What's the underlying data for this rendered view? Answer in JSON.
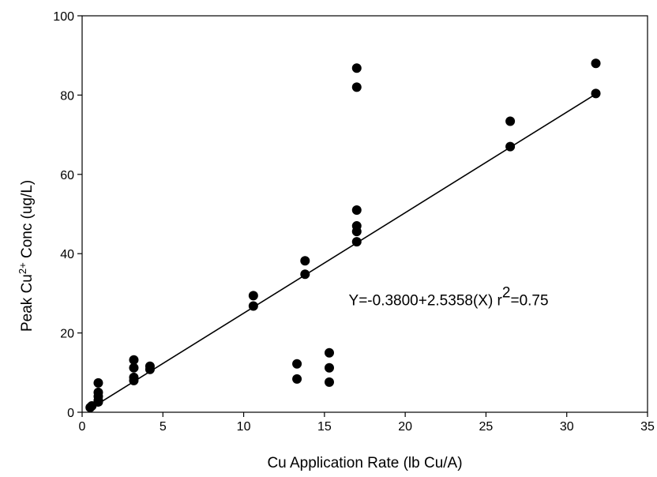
{
  "chart_data": {
    "type": "scatter",
    "title": "",
    "xlabel": "Cu Application Rate (lb Cu/A)",
    "ylabel_main": "Peak Cu",
    "ylabel_sup": "2+",
    "ylabel_rest": " Conc (ug/L)",
    "xlim": [
      0,
      35
    ],
    "ylim": [
      0,
      100
    ],
    "x_ticks": [
      0,
      5,
      10,
      15,
      20,
      25,
      30,
      35
    ],
    "y_ticks": [
      0,
      20,
      40,
      60,
      80,
      100
    ],
    "grid": false,
    "series": [
      {
        "points": [
          [
            0.5,
            1.2
          ],
          [
            0.6,
            1.6
          ],
          [
            1.0,
            2.6
          ],
          [
            1.0,
            3.0
          ],
          [
            1.0,
            4.0
          ],
          [
            1.0,
            5.0
          ],
          [
            1.0,
            7.4
          ],
          [
            3.2,
            8.0
          ],
          [
            3.2,
            8.8
          ],
          [
            3.2,
            11.2
          ],
          [
            3.2,
            13.2
          ],
          [
            4.2,
            10.8
          ],
          [
            4.2,
            11.6
          ],
          [
            10.6,
            26.8
          ],
          [
            10.6,
            29.4
          ],
          [
            13.3,
            8.4
          ],
          [
            13.3,
            12.2
          ],
          [
            13.8,
            34.8
          ],
          [
            13.8,
            38.2
          ],
          [
            15.3,
            7.6
          ],
          [
            15.3,
            11.2
          ],
          [
            15.3,
            15.0
          ],
          [
            17.0,
            43.0
          ],
          [
            17.0,
            45.6
          ],
          [
            17.0,
            47.0
          ],
          [
            17.0,
            51.0
          ],
          [
            17.0,
            82.0
          ],
          [
            17.0,
            86.8
          ],
          [
            26.5,
            67.0
          ],
          [
            26.5,
            73.4
          ],
          [
            31.8,
            80.4
          ],
          [
            31.8,
            88.0
          ]
        ]
      }
    ],
    "regression": {
      "intercept": -0.38,
      "slope": 2.5358,
      "x_range": [
        1.0,
        31.8
      ]
    },
    "annotation": {
      "equation": "Y=-0.3800+2.5358(X) r",
      "r_sup": "2",
      "r_value": "=0.75",
      "x": 16.5,
      "y": 27
    }
  }
}
